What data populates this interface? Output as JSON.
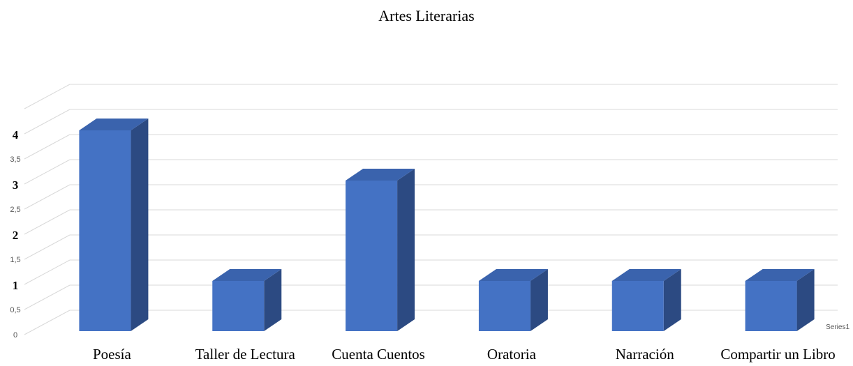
{
  "chart_data": {
    "type": "bar",
    "title": "Artes Literarias",
    "categories": [
      "Poesía",
      "Taller de Lectura",
      "Cuenta Cuentos",
      "Oratoria",
      "Narración",
      "Compartir un Libro"
    ],
    "series": [
      {
        "name": "Series1",
        "values": [
          4,
          1,
          3,
          1,
          1,
          1
        ]
      }
    ],
    "ylim": [
      0,
      4.5
    ],
    "yticks": [
      "0",
      "0,5",
      "1",
      "1,5",
      "2",
      "2,5",
      "3",
      "3,5",
      "4"
    ],
    "grid": true,
    "style": "3d-column",
    "colors": {
      "front": "#4472c4",
      "side": "#2c4a82",
      "top": "#3a63ad"
    }
  }
}
